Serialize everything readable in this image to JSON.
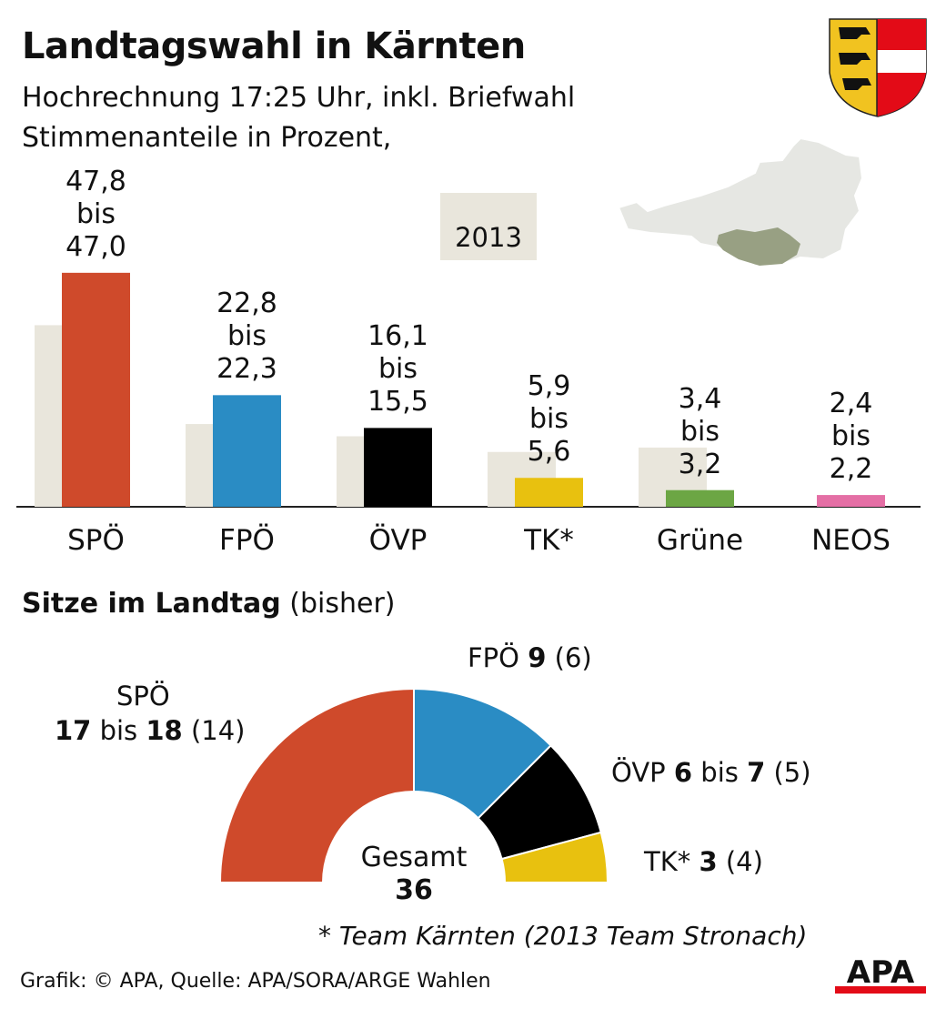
{
  "title": "Landtagswahl in Kärnten",
  "subtitle1": "Hochrechnung 17:25 Uhr, inkl. Briefwahl",
  "subtitle2": "Stimmenanteile in Prozent,",
  "chart_data": [
    {
      "type": "bar",
      "categories": [
        "SPÖ",
        "FPÖ",
        "ÖVP",
        "TK*",
        "Grüne",
        "NEOS"
      ],
      "series": [
        {
          "name": "2013",
          "values": [
            37.1,
            16.9,
            14.4,
            11.2,
            12.1,
            0
          ],
          "color": "#e9e6dc"
        },
        {
          "values": [
            47.8,
            22.8,
            16.1,
            5.9,
            3.4,
            2.4
          ],
          "colors": [
            "#cf4a2b",
            "#2a8cc4",
            "#000000",
            "#e8c10f",
            "#6ca644",
            "#e46fa5"
          ]
        }
      ],
      "ranges": [
        {
          "high": "47,8",
          "bis": "bis",
          "low": "47,0"
        },
        {
          "high": "22,8",
          "bis": "bis",
          "low": "22,3"
        },
        {
          "high": "16,1",
          "bis": "bis",
          "low": "15,5"
        },
        {
          "high": "5,9",
          "bis": "bis",
          "low": "5,6"
        },
        {
          "high": "3,4",
          "bis": "bis",
          "low": "3,2"
        },
        {
          "high": "2,4",
          "bis": "bis",
          "low": "2,2"
        }
      ],
      "legend": "2013",
      "ylim": [
        0,
        50
      ]
    },
    {
      "type": "pie",
      "title": "Sitze im Landtag",
      "title_note": "(bisher)",
      "categories": [
        "SPÖ",
        "FPÖ",
        "ÖVP",
        "TK*"
      ],
      "values": [
        18,
        9,
        6,
        3
      ],
      "colors": [
        "#cf4a2b",
        "#2a8cc4",
        "#000000",
        "#e8c10f"
      ],
      "labels": [
        {
          "party": "SPÖ",
          "seats": "17",
          "bis": "bis",
          "seats_high": "18",
          "previous": "(14)"
        },
        {
          "party": "FPÖ",
          "seats": "9",
          "previous": "(6)"
        },
        {
          "party": "ÖVP",
          "seats": "6",
          "bis": "bis",
          "seats_high": "7",
          "previous": "(5)"
        },
        {
          "party": "TK*",
          "seats": "3",
          "previous": "(4)"
        }
      ],
      "total_label": "Gesamt",
      "total": "36"
    }
  ],
  "footnote": "* Team Kärnten (2013 Team Stronach)",
  "source": "Grafik: © APA, Quelle: APA/SORA/ARGE Wahlen",
  "logo": "APA"
}
